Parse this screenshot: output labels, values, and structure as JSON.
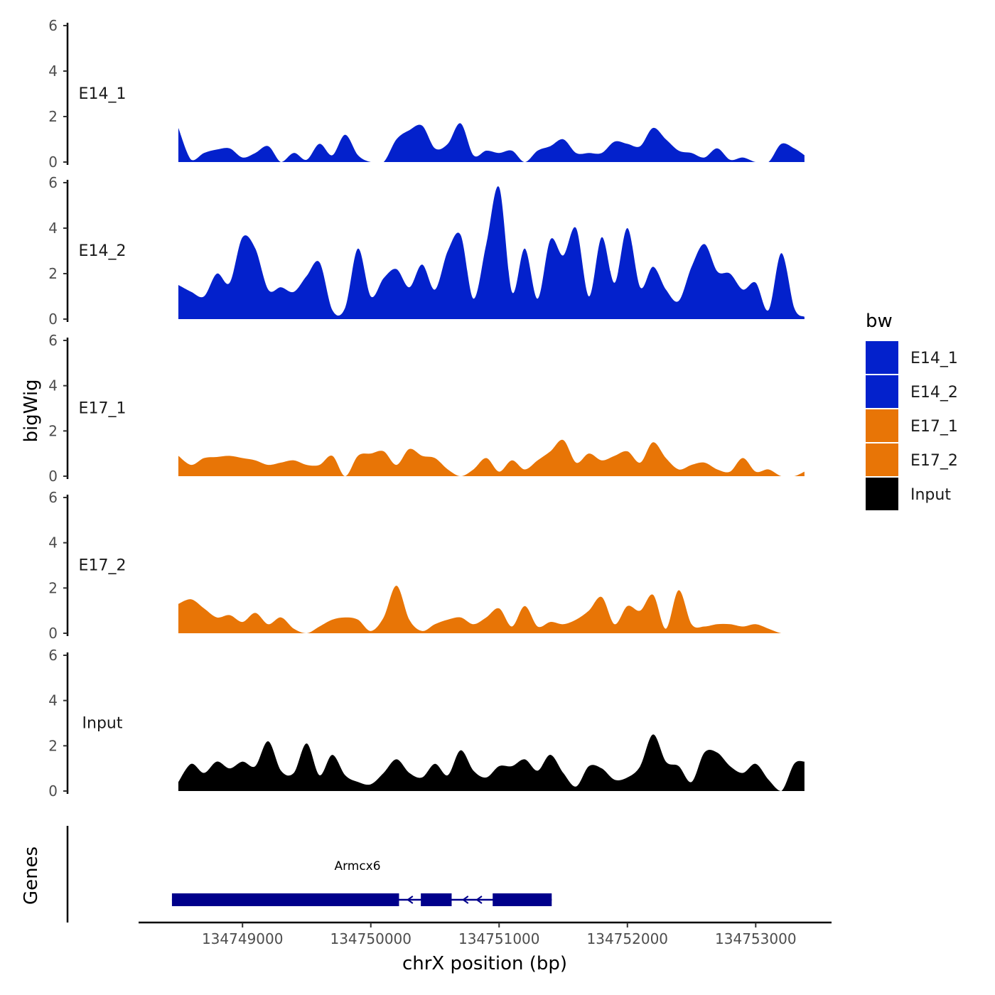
{
  "chart_data": {
    "type": "area",
    "ylabel": "bigWig",
    "xlabel": "chrX position (bp)",
    "ylim": [
      0,
      6
    ],
    "yticks": [
      "0",
      "2",
      "4",
      "6"
    ],
    "xlim": [
      134748190,
      134753580
    ],
    "xticks": [
      {
        "value": 134749000,
        "label": "134749000"
      },
      {
        "value": 134750000,
        "label": "134750000"
      },
      {
        "value": 134751000,
        "label": "134751000"
      },
      {
        "value": 134752000,
        "label": "134752000"
      },
      {
        "value": 134753000,
        "label": "134753000"
      }
    ],
    "x": [
      134748500,
      134748600,
      134748700,
      134748800,
      134748900,
      134749000,
      134749100,
      134749200,
      134749300,
      134749400,
      134749500,
      134749600,
      134749700,
      134749800,
      134749900,
      134750000,
      134750100,
      134750200,
      134750300,
      134750400,
      134750500,
      134750600,
      134750700,
      134750800,
      134750900,
      134751000,
      134751100,
      134751200,
      134751300,
      134751400,
      134751500,
      134751600,
      134751700,
      134751800,
      134751900,
      134752000,
      134752100,
      134752200,
      134752300,
      134752400,
      134752500,
      134752600,
      134752700,
      134752800,
      134752900,
      134753000,
      134753100,
      134753200,
      134753300,
      134753380
    ],
    "series": [
      {
        "name": "E14_1",
        "color": "#0321CC",
        "values": [
          1.5,
          0.1,
          0.4,
          0.55,
          0.6,
          0.2,
          0.4,
          0.7,
          0.0,
          0.4,
          0.1,
          0.8,
          0.3,
          1.2,
          0.3,
          0.0,
          0.0,
          1.0,
          1.4,
          1.6,
          0.6,
          0.8,
          1.7,
          0.3,
          0.5,
          0.4,
          0.5,
          0.0,
          0.5,
          0.7,
          1.0,
          0.4,
          0.4,
          0.4,
          0.9,
          0.8,
          0.7,
          1.5,
          1.0,
          0.5,
          0.4,
          0.2,
          0.6,
          0.1,
          0.2,
          0.0,
          0.0,
          0.8,
          0.6,
          0.3
        ]
      },
      {
        "name": "E14_2",
        "color": "#0321CC",
        "values": [
          1.5,
          1.2,
          1.0,
          2.0,
          1.6,
          3.6,
          3.1,
          1.3,
          1.4,
          1.2,
          1.9,
          2.5,
          0.4,
          0.5,
          3.1,
          1.0,
          1.8,
          2.2,
          1.4,
          2.4,
          1.3,
          3.0,
          3.7,
          0.9,
          3.3,
          5.8,
          1.2,
          3.1,
          0.9,
          3.5,
          2.8,
          4.0,
          1.0,
          3.6,
          1.6,
          4.0,
          1.4,
          2.3,
          1.3,
          0.8,
          2.3,
          3.3,
          2.1,
          2.0,
          1.3,
          1.6,
          0.4,
          2.9,
          0.5,
          0.1
        ]
      },
      {
        "name": "E17_1",
        "color": "#E87506",
        "values": [
          0.9,
          0.5,
          0.8,
          0.85,
          0.9,
          0.8,
          0.7,
          0.5,
          0.6,
          0.7,
          0.5,
          0.5,
          0.9,
          0.0,
          0.9,
          1.0,
          1.1,
          0.5,
          1.2,
          0.9,
          0.8,
          0.3,
          0.0,
          0.3,
          0.8,
          0.2,
          0.7,
          0.3,
          0.7,
          1.1,
          1.6,
          0.6,
          1.0,
          0.7,
          0.9,
          1.1,
          0.6,
          1.5,
          0.8,
          0.3,
          0.5,
          0.6,
          0.3,
          0.2,
          0.8,
          0.2,
          0.3,
          0.0,
          0.0,
          0.2
        ]
      },
      {
        "name": "E17_2",
        "color": "#E87506",
        "values": [
          1.3,
          1.5,
          1.1,
          0.7,
          0.8,
          0.5,
          0.9,
          0.4,
          0.7,
          0.2,
          0.0,
          0.3,
          0.6,
          0.7,
          0.6,
          0.1,
          0.7,
          2.1,
          0.6,
          0.1,
          0.4,
          0.6,
          0.7,
          0.4,
          0.7,
          1.1,
          0.3,
          1.2,
          0.3,
          0.5,
          0.4,
          0.6,
          1.0,
          1.6,
          0.4,
          1.2,
          1.0,
          1.7,
          0.2,
          1.9,
          0.4,
          0.3,
          0.4,
          0.4,
          0.3,
          0.4,
          0.2,
          0.0,
          0.0,
          0.0
        ]
      },
      {
        "name": "Input",
        "color": "#000000",
        "values": [
          0.4,
          1.2,
          0.8,
          1.3,
          1.0,
          1.3,
          1.1,
          2.2,
          0.9,
          0.8,
          2.1,
          0.7,
          1.6,
          0.7,
          0.4,
          0.3,
          0.8,
          1.4,
          0.8,
          0.6,
          1.2,
          0.7,
          1.8,
          0.9,
          0.6,
          1.1,
          1.1,
          1.4,
          0.9,
          1.6,
          0.8,
          0.2,
          1.1,
          1.0,
          0.5,
          0.6,
          1.1,
          2.5,
          1.3,
          1.1,
          0.4,
          1.7,
          1.7,
          1.1,
          0.8,
          1.2,
          0.5,
          0.0,
          1.2,
          1.3
        ]
      }
    ],
    "gene_track": {
      "label": "Genes",
      "gene": "Armcx6",
      "strand": "-",
      "line": [
        134748450,
        134751410
      ],
      "exons": [
        [
          134748450,
          134750220
        ],
        [
          134750390,
          134750630
        ],
        [
          134750950,
          134751410
        ]
      ]
    },
    "legend": {
      "title": "bw",
      "position": "right",
      "entries": [
        "E14_1",
        "E14_2",
        "E17_1",
        "E17_2",
        "Input"
      ]
    }
  }
}
